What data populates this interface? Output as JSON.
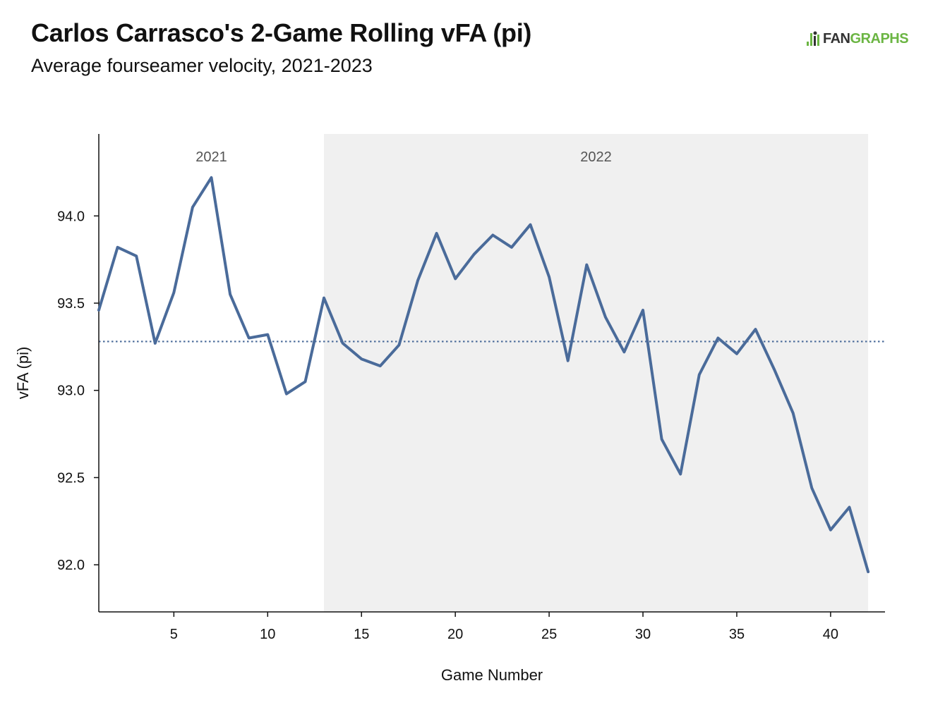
{
  "title": "Carlos Carrasco's 2-Game Rolling vFA (pi)",
  "subtitle": "Average fourseamer velocity, 2021-2023",
  "brand": {
    "part1": "FAN",
    "part2": "GRAPHS",
    "icon": "fangraphs-logo-icon",
    "colors": {
      "dark": "#333333",
      "green": "#6bb543"
    }
  },
  "chart_data": {
    "type": "line",
    "xlabel": "Game Number",
    "ylabel": "vFA (pi)",
    "xlim": [
      1,
      42.9
    ],
    "ylim": [
      91.73,
      94.47
    ],
    "xticks": [
      5,
      10,
      15,
      20,
      25,
      30,
      35,
      40
    ],
    "yticks": [
      92.0,
      92.5,
      93.0,
      93.5,
      94.0
    ],
    "ytick_labels": [
      "92.0",
      "92.5",
      "93.0",
      "93.5",
      "94.0"
    ],
    "line_color": "#4a6b9a",
    "reference_line": {
      "value": 93.28,
      "style": "dotted",
      "color": "#4a6b9a"
    },
    "seasons": [
      {
        "label": "2021",
        "start": 1,
        "end": 13,
        "shaded": false
      },
      {
        "label": "2022",
        "start": 13,
        "end": 42,
        "shaded": true,
        "color": "#f0f0f0"
      }
    ],
    "series": [
      {
        "x": [
          1,
          2,
          3,
          4,
          5,
          6,
          7,
          8,
          9,
          10,
          11,
          12,
          13,
          14,
          15,
          16,
          17,
          18,
          19,
          20,
          21,
          22,
          23,
          24,
          25,
          26,
          27,
          28,
          29,
          30,
          31,
          32,
          33,
          34,
          35,
          36,
          37,
          38,
          39,
          40,
          41,
          42
        ],
        "values": [
          93.46,
          93.82,
          93.77,
          93.27,
          93.56,
          94.05,
          94.22,
          93.55,
          93.3,
          93.32,
          92.98,
          93.05,
          93.53,
          93.27,
          93.18,
          93.14,
          93.26,
          93.63,
          93.9,
          93.64,
          93.78,
          93.89,
          93.82,
          93.95,
          93.65,
          93.17,
          93.72,
          93.42,
          93.22,
          93.46,
          92.72,
          92.52,
          93.09,
          93.3,
          93.21,
          93.35,
          93.12,
          92.87,
          92.44,
          92.2,
          92.33,
          91.96
        ]
      }
    ]
  }
}
